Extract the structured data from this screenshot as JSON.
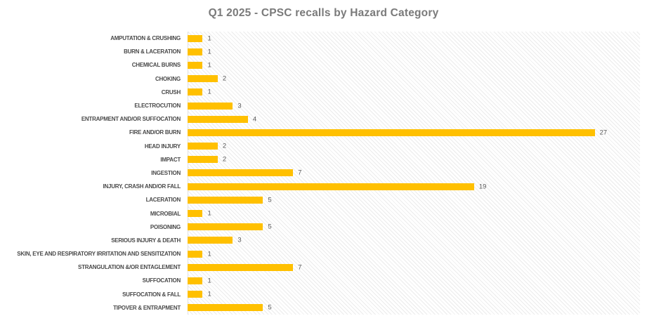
{
  "chart": {
    "title": "Q1 2025 - CPSC recalls by Hazard Category"
  },
  "chart_data": {
    "type": "bar",
    "orientation": "horizontal",
    "title": "Q1 2025 - CPSC recalls by Hazard Category",
    "categories": [
      "AMPUTATION & CRUSHING",
      "BURN & LACERATION",
      "CHEMICAL BURNS",
      "CHOKING",
      "CRUSH",
      "ELECTROCUTION",
      "ENTRAPMENT AND/OR SUFFOCATION",
      "FIRE AND/OR BURN",
      "HEAD INJURY",
      "IMPACT",
      "INGESTION",
      "INJURY, CRASH AND/OR FALL",
      "LACERATION",
      "MICROBIAL",
      "POISONING",
      "SERIOUS INJURY & DEATH",
      "SKIN, EYE AND RESPIRATORY IRRITATION AND SENSITIZATION",
      "STRANGULATION &/OR ENTAGLEMENT",
      "SUFFOCATION",
      "SUFFOCATION & FALL",
      "TIPOVER & ENTRAPMENT"
    ],
    "values": [
      1,
      1,
      1,
      2,
      1,
      3,
      4,
      27,
      2,
      2,
      7,
      19,
      5,
      1,
      5,
      3,
      1,
      7,
      1,
      1,
      5
    ],
    "xlabel": "",
    "ylabel": "",
    "xlim": [
      0,
      30
    ],
    "grid": false,
    "legend": false,
    "value_labels_shown": true,
    "bar_color": "#FFC000",
    "plot_background": "light-diagonal-hatch",
    "title_color": "#7a7a7a",
    "category_label_color": "#4a4a4a",
    "value_label_color": "#595959"
  }
}
